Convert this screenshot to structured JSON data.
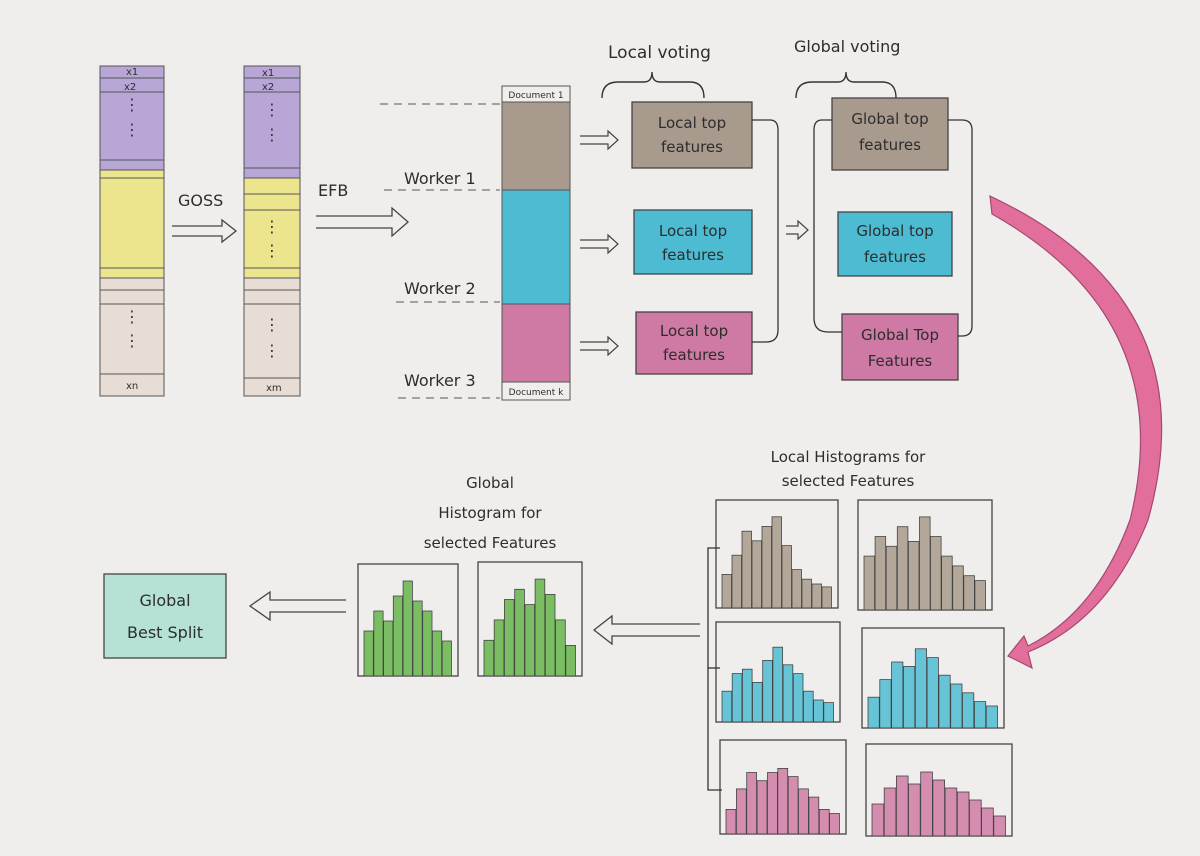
{
  "labels": {
    "goss": "GOSS",
    "efb": "EFB",
    "local_voting": "Local voting",
    "global_voting": "Global voting",
    "worker_1": "Worker 1",
    "worker_2": "Worker 2",
    "worker_3": "Worker 3",
    "document_1": "Document 1",
    "document_k": "Document k",
    "col1_row1": "x1",
    "col1_row2": "x2",
    "col1_last": "xn",
    "col2_row1": "x1",
    "col2_row2": "x2",
    "col2_last": "xm",
    "local_top_1": [
      "Local top",
      "features"
    ],
    "local_top_2": [
      "Local top",
      "features"
    ],
    "local_top_3": [
      "Local top",
      "features"
    ],
    "global_top_1": [
      "Global top",
      "features"
    ],
    "global_top_2": [
      "Global top",
      "features"
    ],
    "global_top_3": [
      "Global Top",
      "Features"
    ],
    "local_hist_title": [
      "Local Histograms for",
      "selected Features"
    ],
    "global_hist_title": [
      "Global",
      "Histogram for",
      "selected Features"
    ],
    "best_split": [
      "Global",
      "Best Split"
    ]
  },
  "colors": {
    "purple": "#b7a6d6",
    "yellow": "#ece58e",
    "beige": "#e8ddd5",
    "brown": "#a89a8c",
    "cyan": "#4dbcd2",
    "pink": "#cf7aa4",
    "green": "#66b44a",
    "teal": "#b6e2d6",
    "arrow_pink": "#e05a8e"
  },
  "local_histograms": [
    {
      "color": "brown",
      "bars": [
        0.35,
        0.55,
        0.8,
        0.7,
        0.85,
        0.95,
        0.65,
        0.4,
        0.3,
        0.25,
        0.22
      ]
    },
    {
      "color": "brown",
      "bars": [
        0.55,
        0.75,
        0.65,
        0.85,
        0.7,
        0.95,
        0.75,
        0.55,
        0.45,
        0.35,
        0.3
      ]
    },
    {
      "color": "cyan",
      "bars": [
        0.35,
        0.55,
        0.6,
        0.45,
        0.7,
        0.85,
        0.65,
        0.55,
        0.35,
        0.25,
        0.22
      ]
    },
    {
      "color": "cyan",
      "bars": [
        0.35,
        0.55,
        0.75,
        0.7,
        0.9,
        0.8,
        0.6,
        0.5,
        0.4,
        0.3,
        0.25
      ]
    },
    {
      "color": "pink",
      "bars": [
        0.3,
        0.55,
        0.75,
        0.65,
        0.75,
        0.8,
        0.7,
        0.55,
        0.45,
        0.3,
        0.25
      ]
    },
    {
      "color": "pink",
      "bars": [
        0.4,
        0.6,
        0.75,
        0.65,
        0.8,
        0.7,
        0.6,
        0.55,
        0.45,
        0.35,
        0.25
      ]
    }
  ],
  "global_histograms": [
    {
      "color": "green",
      "bars": [
        0.45,
        0.65,
        0.55,
        0.8,
        0.95,
        0.75,
        0.65,
        0.45,
        0.35
      ]
    },
    {
      "color": "green",
      "bars": [
        0.35,
        0.55,
        0.75,
        0.85,
        0.7,
        0.95,
        0.8,
        0.55,
        0.3
      ]
    }
  ]
}
